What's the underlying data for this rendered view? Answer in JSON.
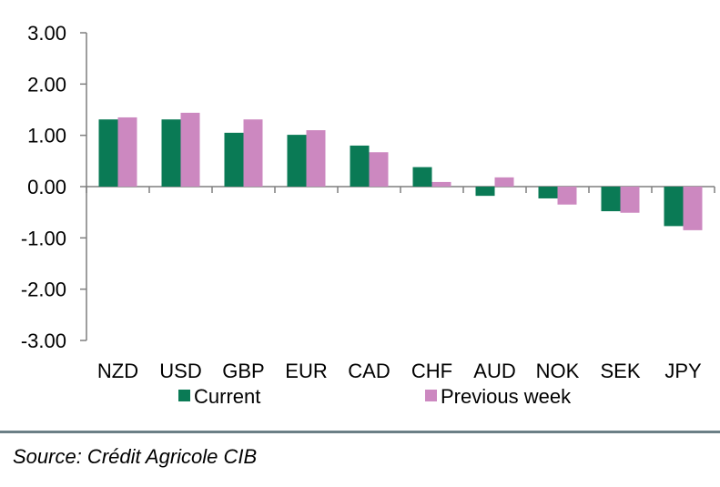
{
  "chart_data": {
    "type": "bar",
    "categories": [
      "NZD",
      "USD",
      "GBP",
      "EUR",
      "CAD",
      "CHF",
      "AUD",
      "NOK",
      "SEK",
      "JPY"
    ],
    "series": [
      {
        "name": "Current",
        "color": "#0a7a55",
        "values": [
          1.31,
          1.31,
          1.05,
          1.01,
          0.8,
          0.38,
          -0.18,
          -0.23,
          -0.48,
          -0.77
        ]
      },
      {
        "name": "Previous week",
        "color": "#cc88c0",
        "values": [
          1.35,
          1.44,
          1.31,
          1.1,
          0.67,
          0.09,
          0.18,
          -0.35,
          -0.51,
          -0.85
        ]
      }
    ],
    "y_ticks": [
      "3.00",
      "2.00",
      "1.00",
      "0.00",
      "-1.00",
      "-2.00",
      "-3.00"
    ],
    "ylim": [
      -3,
      3
    ],
    "legend_position": "bottom",
    "grid": false
  },
  "source": "Source: Crédit Agricole CIB"
}
